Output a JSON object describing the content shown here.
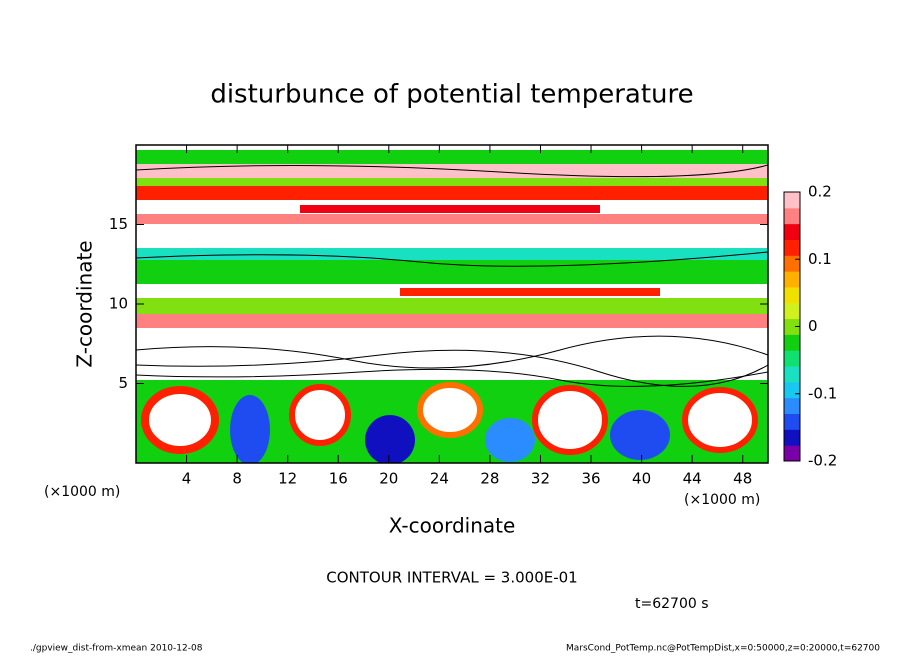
{
  "chart_data": {
    "type": "contour",
    "title": "disturbunce of potential temperature",
    "xlabel": "X-coordinate",
    "ylabel": "Z-coordinate",
    "x_unit": "(×1000 m)",
    "y_unit": "(×1000 m)",
    "xlim": [
      0,
      50
    ],
    "xticks": [
      4,
      8,
      12,
      16,
      20,
      24,
      28,
      32,
      36,
      40,
      44,
      48
    ],
    "ylim": [
      0,
      20
    ],
    "yticks": [
      5,
      10,
      15
    ],
    "colorbar": {
      "lim": [
        -0.2,
        0.2
      ],
      "ticks": [
        -0.2,
        -0.1,
        0,
        0.1,
        0.2
      ],
      "colors": [
        "#7a00a8",
        "#1010c0",
        "#1f4cf0",
        "#2a8cff",
        "#19c8f0",
        "#19e0c0",
        "#10e070",
        "#10d010",
        "#80e010",
        "#d0f020",
        "#f0e000",
        "#ffb000",
        "#ff7000",
        "#ff2000",
        "#f00010",
        "#ff8080",
        "#ffc0c8"
      ]
    },
    "contour_interval": "CONTOUR INTERVAL = 3.000E-01",
    "time_label": "t=62700 s",
    "footer_left": "./gpview_dist-from-xmean  2010-12-08",
    "footer_right": "MarsCond_PotTemp.nc@PotTempDist,x=0:50000,z=0:20000,t=62700"
  }
}
